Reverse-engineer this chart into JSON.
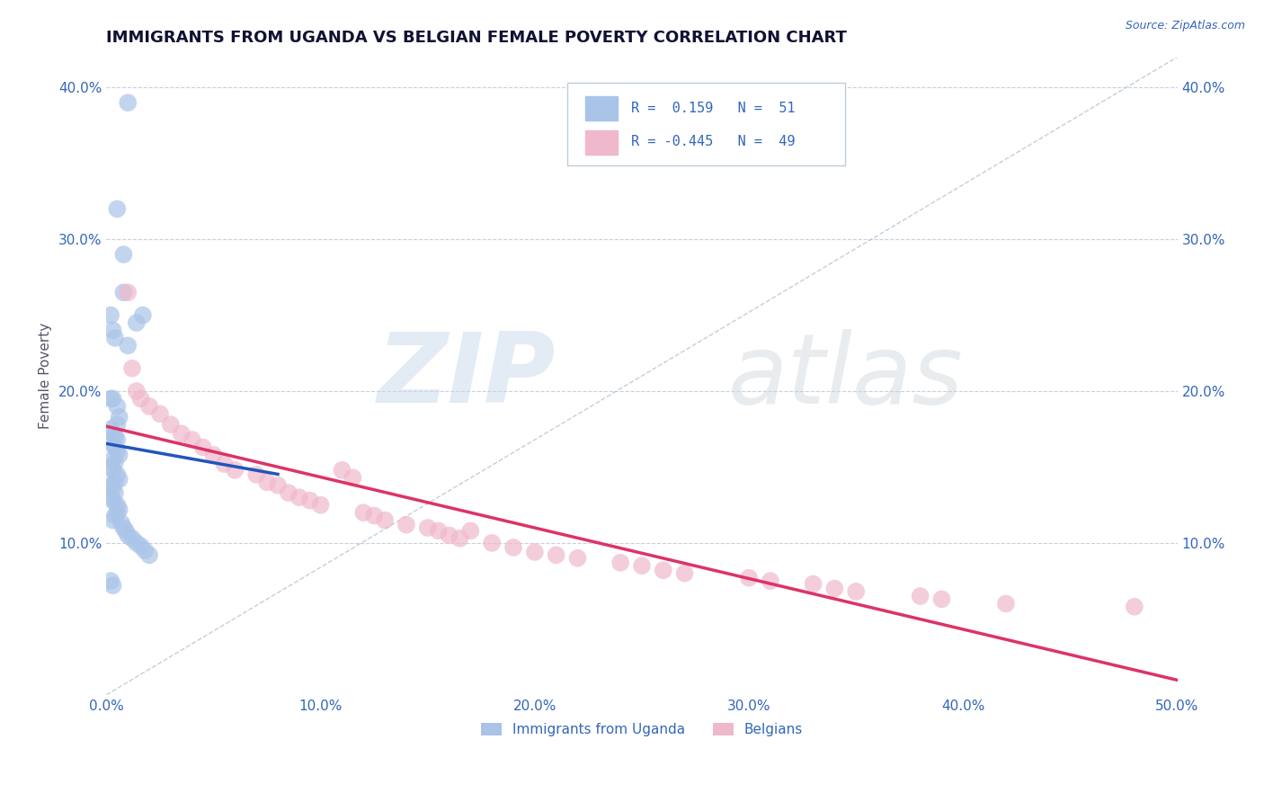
{
  "title": "IMMIGRANTS FROM UGANDA VS BELGIAN FEMALE POVERTY CORRELATION CHART",
  "source": "Source: ZipAtlas.com",
  "ylabel": "Female Poverty",
  "xlim": [
    0.0,
    0.5
  ],
  "ylim": [
    0.0,
    0.42
  ],
  "xticks": [
    0.0,
    0.1,
    0.2,
    0.3,
    0.4,
    0.5
  ],
  "yticks": [
    0.1,
    0.2,
    0.3,
    0.4
  ],
  "ytick_labels": [
    "10.0%",
    "20.0%",
    "30.0%",
    "40.0%"
  ],
  "xtick_labels": [
    "0.0%",
    "10.0%",
    "20.0%",
    "30.0%",
    "40.0%",
    "50.0%"
  ],
  "R1": 0.159,
  "N1": 51,
  "R2": -0.445,
  "N2": 49,
  "uganda_color": "#aac4e8",
  "belgian_color": "#f0b8cc",
  "line1_color": "#2255bb",
  "line2_color": "#dd3366",
  "background_color": "#ffffff",
  "uganda_x": [
    0.01,
    0.005,
    0.008,
    0.008,
    0.002,
    0.003,
    0.004,
    0.01,
    0.014,
    0.017,
    0.002,
    0.003,
    0.005,
    0.006,
    0.005,
    0.002,
    0.003,
    0.004,
    0.005,
    0.003,
    0.004,
    0.005,
    0.006,
    0.003,
    0.004,
    0.002,
    0.003,
    0.005,
    0.006,
    0.004,
    0.002,
    0.003,
    0.004,
    0.002,
    0.003,
    0.005,
    0.006,
    0.005,
    0.004,
    0.003,
    0.007,
    0.008,
    0.009,
    0.01,
    0.012,
    0.014,
    0.016,
    0.018,
    0.02,
    0.002,
    0.003
  ],
  "uganda_y": [
    0.39,
    0.32,
    0.29,
    0.265,
    0.25,
    0.24,
    0.235,
    0.23,
    0.245,
    0.25,
    0.195,
    0.195,
    0.19,
    0.183,
    0.178,
    0.175,
    0.172,
    0.17,
    0.168,
    0.165,
    0.163,
    0.16,
    0.158,
    0.155,
    0.153,
    0.15,
    0.148,
    0.145,
    0.142,
    0.14,
    0.138,
    0.136,
    0.133,
    0.13,
    0.128,
    0.125,
    0.122,
    0.12,
    0.118,
    0.115,
    0.113,
    0.11,
    0.108,
    0.105,
    0.103,
    0.1,
    0.098,
    0.095,
    0.092,
    0.075,
    0.072
  ],
  "belgian_x": [
    0.01,
    0.012,
    0.014,
    0.016,
    0.02,
    0.025,
    0.03,
    0.035,
    0.04,
    0.045,
    0.05,
    0.055,
    0.06,
    0.07,
    0.075,
    0.08,
    0.085,
    0.09,
    0.095,
    0.1,
    0.11,
    0.115,
    0.12,
    0.125,
    0.13,
    0.14,
    0.15,
    0.155,
    0.16,
    0.165,
    0.17,
    0.18,
    0.19,
    0.2,
    0.21,
    0.22,
    0.24,
    0.25,
    0.26,
    0.27,
    0.3,
    0.31,
    0.33,
    0.34,
    0.35,
    0.38,
    0.39,
    0.42,
    0.48
  ],
  "belgian_y": [
    0.265,
    0.215,
    0.2,
    0.195,
    0.19,
    0.185,
    0.178,
    0.172,
    0.168,
    0.163,
    0.158,
    0.152,
    0.148,
    0.145,
    0.14,
    0.138,
    0.133,
    0.13,
    0.128,
    0.125,
    0.148,
    0.143,
    0.12,
    0.118,
    0.115,
    0.112,
    0.11,
    0.108,
    0.105,
    0.103,
    0.108,
    0.1,
    0.097,
    0.094,
    0.092,
    0.09,
    0.087,
    0.085,
    0.082,
    0.08,
    0.077,
    0.075,
    0.073,
    0.07,
    0.068,
    0.065,
    0.063,
    0.06,
    0.058
  ],
  "title_fontsize": 13,
  "axis_label_fontsize": 11,
  "tick_fontsize": 11,
  "watermark_zip_color": "#c8d8ec",
  "watermark_atlas_color": "#c8d0d8"
}
